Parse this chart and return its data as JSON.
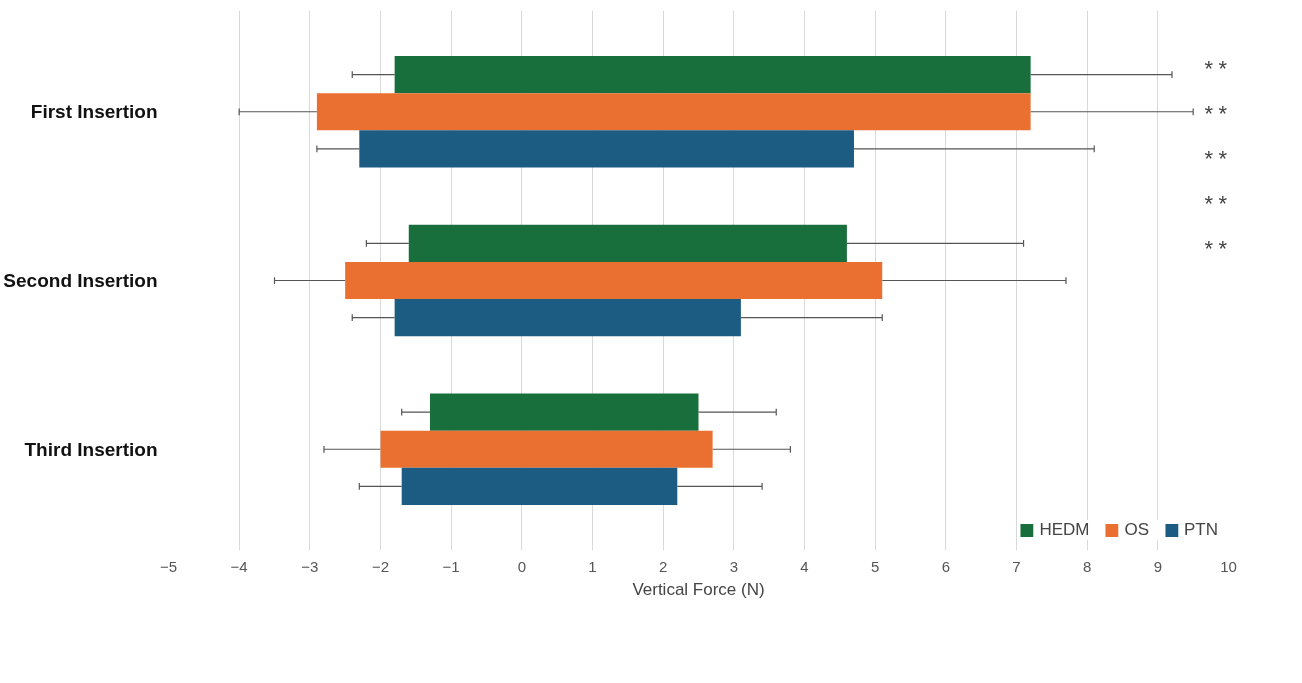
{
  "chart_data": {
    "type": "bar",
    "orientation": "horizontal",
    "xlabel": "Vertical Force (N)",
    "categories": [
      "First Insertion",
      "Second Insertion",
      "Third Insertion"
    ],
    "series": [
      {
        "name": "HEDM",
        "color": "#186f3b",
        "base": [
          -1.8,
          -1.6,
          -1.3
        ],
        "values": [
          9.0,
          6.2,
          3.8
        ],
        "errors": [
          [
            -2.4,
            9.2
          ],
          [
            -2.2,
            7.1
          ],
          [
            -1.7,
            3.6
          ]
        ]
      },
      {
        "name": "OS",
        "color": "#e97030",
        "base": [
          -2.9,
          -2.5,
          -2.0
        ],
        "values": [
          10.1,
          7.6,
          4.7
        ],
        "errors": [
          [
            -4.0,
            9.5
          ],
          [
            -3.5,
            7.7
          ],
          [
            -2.8,
            3.8
          ]
        ]
      },
      {
        "name": "PTN",
        "color": "#1d5c82",
        "base": [
          -2.3,
          -1.8,
          -1.7
        ],
        "values": [
          7.0,
          4.9,
          3.9
        ],
        "errors": [
          [
            -2.9,
            8.1
          ],
          [
            -2.4,
            5.1
          ],
          [
            -2.3,
            3.4
          ]
        ]
      }
    ],
    "xlim": [
      -5,
      10
    ],
    "xticks": [
      -5,
      -4,
      -3,
      -2,
      -1,
      0,
      1,
      2,
      3,
      4,
      5,
      6,
      7,
      8,
      9,
      10
    ],
    "grid": "x",
    "legend": "bottom right",
    "annotations": [
      "*",
      "*",
      "*",
      "*",
      "*",
      "*",
      "*",
      "*",
      "*",
      "*"
    ]
  }
}
